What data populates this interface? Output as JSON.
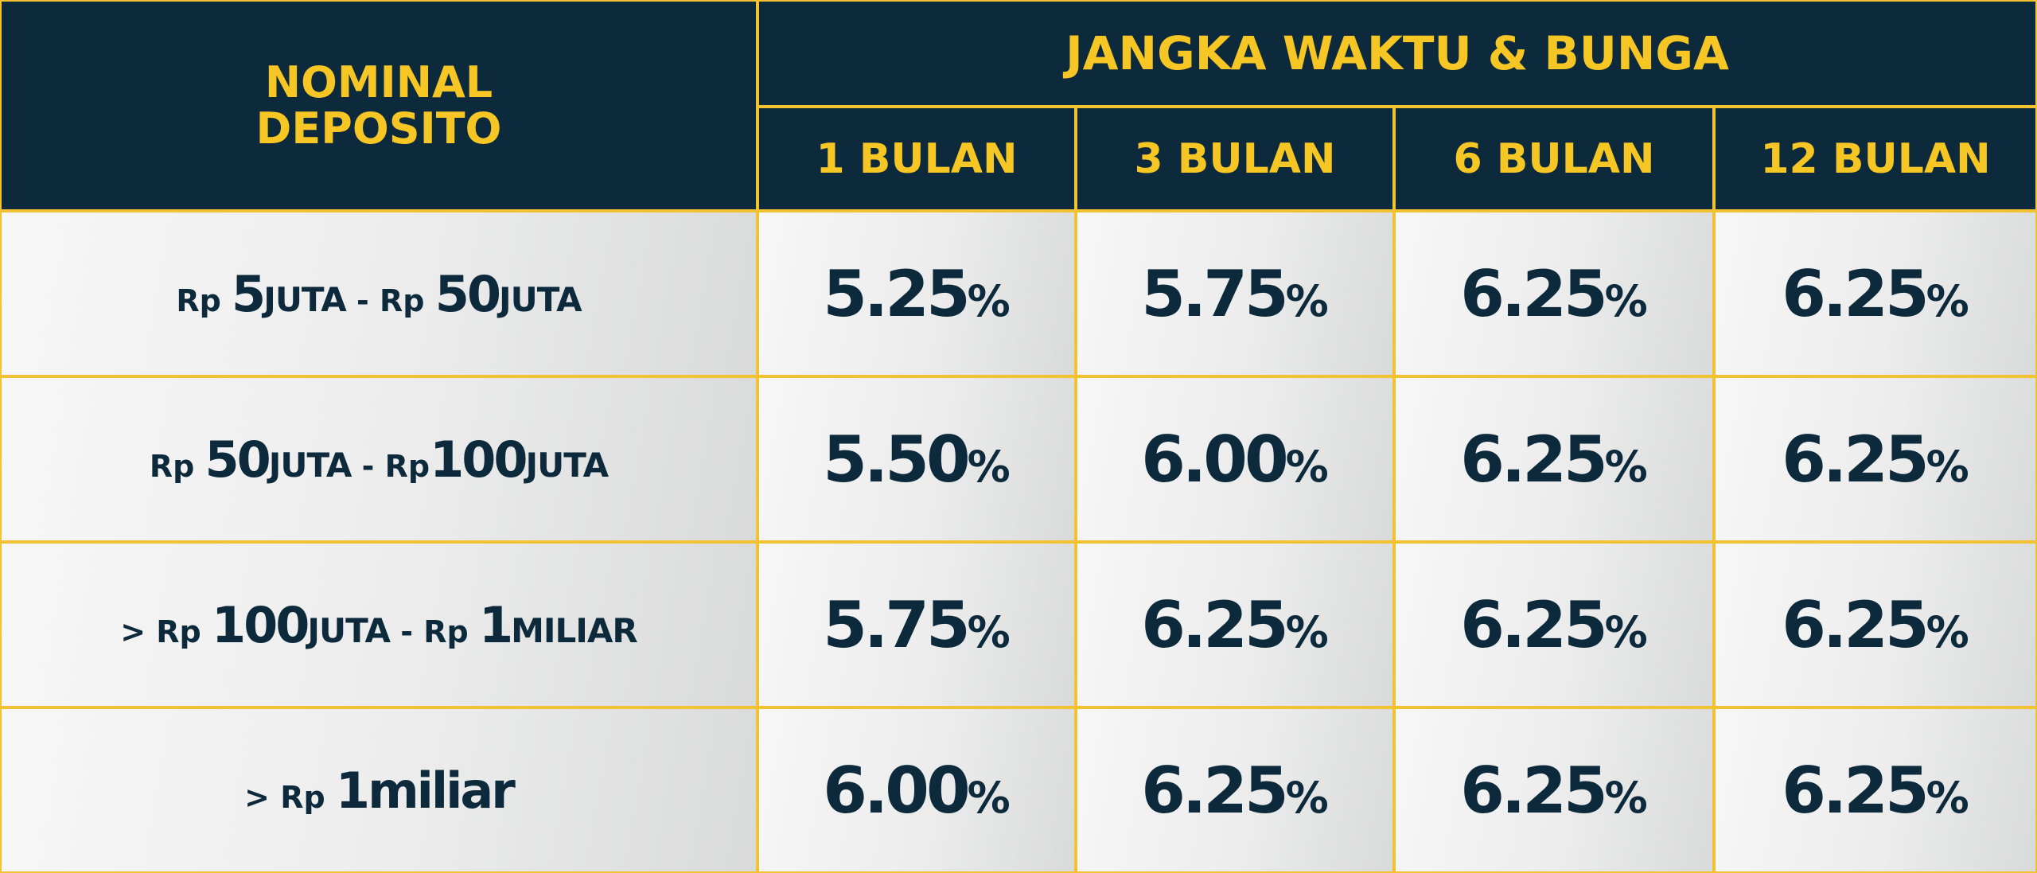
{
  "header": {
    "nominal": [
      "NOMINAL",
      "DEPOSITO"
    ],
    "term": "JANGKA WAKTU & BUNGA",
    "periods": [
      "1 BULAN",
      "3 BULAN",
      "6 BULAN",
      "12 BULAN"
    ]
  },
  "unit": "%",
  "table": {
    "rows": [
      {
        "nominal": [
          "Rp ",
          "5",
          "JUTA",
          " - Rp ",
          "50",
          "JUTA"
        ],
        "rates": [
          "5.25",
          "5.75",
          "6.25",
          "6.25"
        ]
      },
      {
        "nominal": [
          "Rp ",
          "50",
          "JUTA",
          " - Rp",
          "100",
          "JUTA"
        ],
        "rates": [
          "5.50",
          "6.00",
          "6.25",
          "6.25"
        ]
      },
      {
        "nominal": [
          "> Rp ",
          "100",
          "JUTA",
          " - Rp ",
          "1",
          "MILIAR"
        ],
        "rates": [
          "5.75",
          "6.25",
          "6.25",
          "6.25"
        ]
      },
      {
        "nominal": [
          "> Rp ",
          "1",
          "miliar"
        ],
        "rates": [
          "6.00",
          "6.25",
          "6.25",
          "6.25"
        ]
      }
    ]
  }
}
